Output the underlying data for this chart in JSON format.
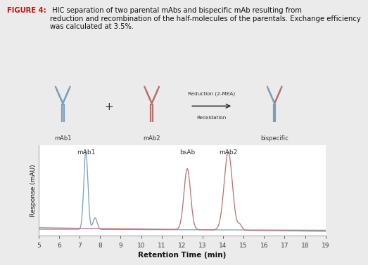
{
  "title_bold": "FIGURE 4:",
  "title_rest": " HIC separation of two parental mAbs and bispecific mAb resulting from\nreduction and recombination of the half-molecules of the parentals. Exchange efficiency\nwas calculated at 3.5%.",
  "xlabel": "Retention Time (min)",
  "ylabel": "Response (mAU)",
  "xmin": 5,
  "xmax": 19,
  "x_ticks": [
    5,
    6,
    7,
    8,
    9,
    10,
    11,
    12,
    13,
    14,
    15,
    16,
    17,
    18,
    19
  ],
  "blue_color": "#7A9EBB",
  "red_color": "#B87070",
  "bg_color": "#ebebeb",
  "plot_bg": "#ffffff",
  "peak_labels": [
    {
      "text": "mAb1",
      "x": 7.3
    },
    {
      "text": "bsAb",
      "x": 12.25
    },
    {
      "text": "mAb2",
      "x": 14.25
    }
  ],
  "arrow_text_top": "Reduction (2-MEA)",
  "arrow_text_bot": "Reoxidation",
  "label_mab1": "mAb1",
  "label_mab2": "mAb2",
  "label_bispecific": "bispecific"
}
